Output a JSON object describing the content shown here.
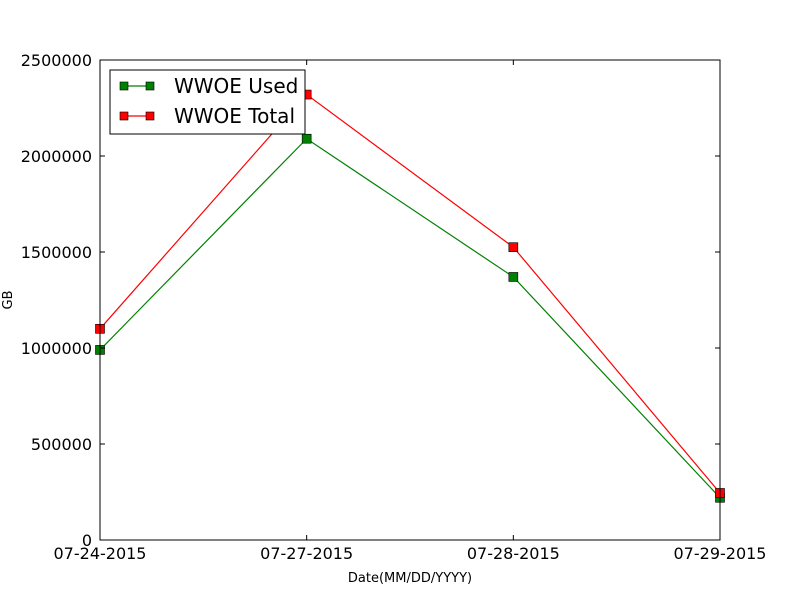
{
  "chart_data": {
    "type": "line",
    "title": "",
    "xlabel": "Date(MM/DD/YYYY)",
    "ylabel": "GB",
    "categories": [
      "07-24-2015",
      "07-27-2015",
      "07-28-2015",
      "07-29-2015"
    ],
    "ylim": [
      0,
      2500000
    ],
    "yticks": [
      0,
      500000,
      1000000,
      1500000,
      2000000,
      2500000
    ],
    "ytick_labels": [
      "0",
      "500000",
      "1000000",
      "1500000",
      "2000000",
      "2500000"
    ],
    "grid": false,
    "legend_position": "top-left",
    "series": [
      {
        "name": "WWOE Used",
        "color": "#008000",
        "marker": "square",
        "values": [
          990000,
          2090000,
          1370000,
          220000
        ]
      },
      {
        "name": "WWOE Total",
        "color": "#ff0000",
        "marker": "square",
        "values": [
          1100000,
          2320000,
          1525000,
          245000
        ]
      }
    ]
  }
}
